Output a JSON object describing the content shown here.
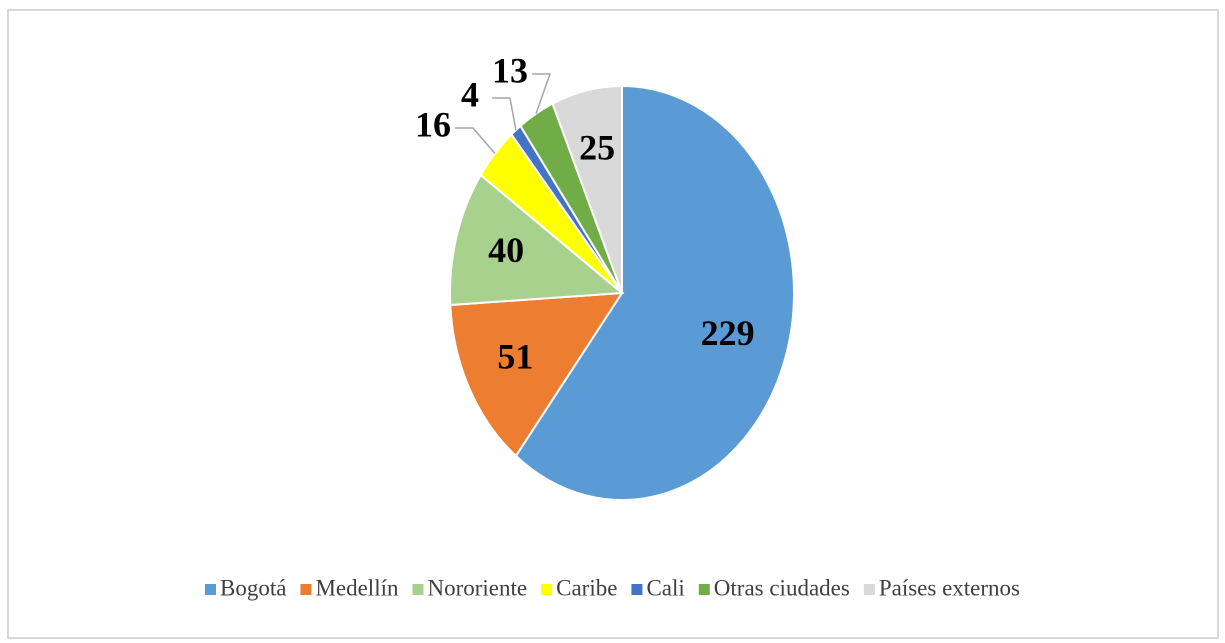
{
  "chart_data": {
    "type": "pie",
    "categories": [
      "Bogotá",
      "Medellín",
      "Nororiente",
      "Caribe",
      "Cali",
      "Otras ciudades",
      "Países externos"
    ],
    "values": [
      229,
      51,
      40,
      16,
      4,
      13,
      25
    ],
    "colors": [
      "#5b9bd5",
      "#ed7d31",
      "#a9d18e",
      "#ffff00",
      "#4472c4",
      "#70ad47",
      "#d9d9d9"
    ],
    "legend": "bottom"
  }
}
